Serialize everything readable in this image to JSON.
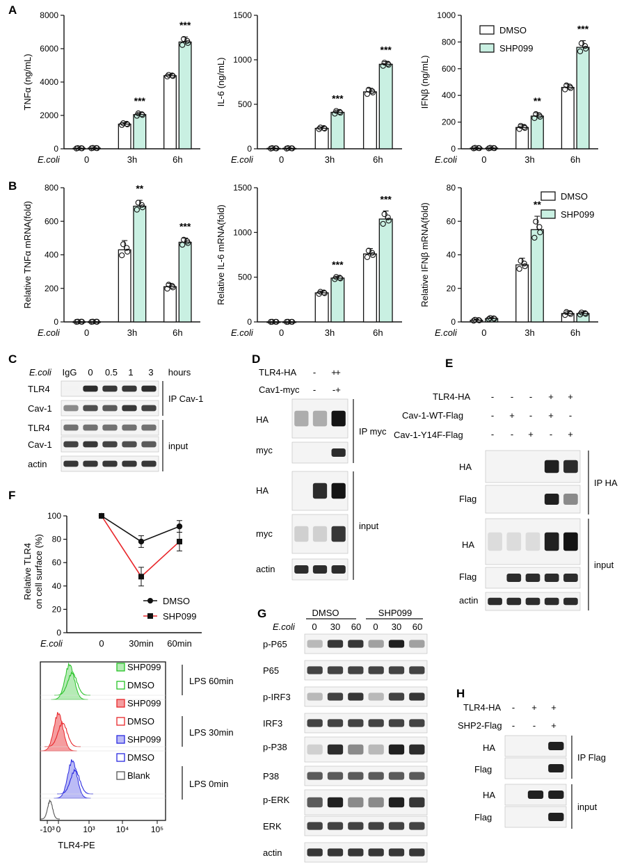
{
  "colors": {
    "dmso_fill": "#ffffff",
    "shp099_fill": "#c9f0e2",
    "bar_stroke": "#111111",
    "dmso_line": "#111111",
    "shp099_line": "#e8262a"
  },
  "legend": {
    "dmso": "DMSO",
    "shp099": "SHP099"
  },
  "panels": {
    "A": "A",
    "B": "B",
    "C": "C",
    "D": "D",
    "E": "E",
    "F": "F",
    "G": "G",
    "H": "H"
  },
  "ecoli_label": "E.coli",
  "chart_data": [
    {
      "id": "A1",
      "type": "bar",
      "categories": [
        "0",
        "3h",
        "6h"
      ],
      "ylabel": "TNFα (ng/mL)",
      "ylim": [
        0,
        8000
      ],
      "yticks": [
        0,
        2000,
        4000,
        6000,
        8000
      ],
      "series": [
        {
          "name": "DMSO",
          "values": [
            30,
            1480,
            4380
          ]
        },
        {
          "name": "SHP099",
          "values": [
            40,
            2050,
            6400
          ]
        }
      ],
      "errors": [
        [
          20,
          90,
          80
        ],
        [
          20,
          120,
          300
        ]
      ],
      "significance": [
        "",
        "***",
        "***"
      ]
    },
    {
      "id": "A2",
      "type": "bar",
      "categories": [
        "0",
        "3h",
        "6h"
      ],
      "ylabel": "IL-6 (ng/mL)",
      "ylim": [
        0,
        1500
      ],
      "yticks": [
        0,
        500,
        1000,
        1500
      ],
      "series": [
        {
          "name": "DMSO",
          "values": [
            5,
            230,
            640
          ]
        },
        {
          "name": "SHP099",
          "values": [
            5,
            410,
            950
          ]
        }
      ],
      "errors": [
        [
          4,
          15,
          40
        ],
        [
          4,
          25,
          30
        ]
      ],
      "significance": [
        "",
        "***",
        "***"
      ]
    },
    {
      "id": "A3",
      "type": "bar",
      "categories": [
        "0",
        "3h",
        "6h"
      ],
      "ylabel": "IFNβ (ng/mL)",
      "ylim": [
        0,
        1000
      ],
      "yticks": [
        0,
        200,
        400,
        600,
        800,
        1000
      ],
      "series": [
        {
          "name": "DMSO",
          "values": [
            5,
            160,
            460
          ]
        },
        {
          "name": "SHP099",
          "values": [
            5,
            245,
            760
          ]
        }
      ],
      "errors": [
        [
          3,
          20,
          25
        ],
        [
          3,
          25,
          50
        ]
      ],
      "significance": [
        "",
        "**",
        "***"
      ]
    },
    {
      "id": "B1",
      "type": "bar",
      "categories": [
        "0",
        "3h",
        "6h"
      ],
      "ylabel": "Relative TNFα mRNA(fold)",
      "ylim": [
        0,
        800
      ],
      "yticks": [
        0,
        200,
        400,
        600,
        800
      ],
      "series": [
        {
          "name": "DMSO",
          "values": [
            1,
            430,
            210
          ]
        },
        {
          "name": "SHP099",
          "values": [
            1,
            690,
            475
          ]
        }
      ],
      "errors": [
        [
          1,
          55,
          20
        ],
        [
          1,
          35,
          25
        ]
      ],
      "significance": [
        "",
        "**",
        "***"
      ]
    },
    {
      "id": "B2",
      "type": "bar",
      "categories": [
        "0",
        "3h",
        "6h"
      ],
      "ylabel": "Relative IL-6 mRNA(fold)",
      "ylim": [
        0,
        1500
      ],
      "yticks": [
        0,
        500,
        1000,
        1500
      ],
      "series": [
        {
          "name": "DMSO",
          "values": [
            1,
            325,
            760
          ]
        },
        {
          "name": "SHP099",
          "values": [
            1,
            490,
            1150
          ]
        }
      ],
      "errors": [
        [
          1,
          20,
          60
        ],
        [
          1,
          20,
          90
        ]
      ],
      "significance": [
        "",
        "***",
        "***"
      ]
    },
    {
      "id": "B3",
      "type": "bar",
      "categories": [
        "0",
        "3h",
        "6h"
      ],
      "ylabel": "Relative IFNβ mRNA(fold)",
      "ylim": [
        0,
        80
      ],
      "yticks": [
        0,
        20,
        40,
        60,
        80
      ],
      "series": [
        {
          "name": "DMSO",
          "values": [
            1,
            34,
            5
          ]
        },
        {
          "name": "SHP099",
          "values": [
            2,
            55,
            5
          ]
        }
      ],
      "errors": [
        [
          0.5,
          4,
          1.5
        ],
        [
          0.5,
          8,
          1
        ]
      ],
      "significance": [
        "",
        "**",
        ""
      ]
    },
    {
      "id": "F",
      "type": "line",
      "x": [
        "0",
        "30min",
        "60min"
      ],
      "ylabel": "Relative TLR4 on cell surface (%)",
      "ylim": [
        0,
        100
      ],
      "yticks": [
        0,
        20,
        40,
        60,
        80,
        100
      ],
      "series": [
        {
          "name": "DMSO",
          "values": [
            100,
            78,
            91
          ]
        },
        {
          "name": "SHP099",
          "values": [
            100,
            48,
            78
          ]
        }
      ],
      "errors": [
        [
          0,
          5,
          5
        ],
        [
          0,
          8,
          8
        ]
      ]
    }
  ],
  "panelC": {
    "header": [
      "IgG",
      "0",
      "0.5",
      "1",
      "3",
      "hours"
    ],
    "rows": [
      "TLR4",
      "Cav-1",
      "TLR4",
      "Cav-1",
      "actin"
    ],
    "groups": [
      "IP Cav-1",
      "input"
    ]
  },
  "panelD": {
    "rowlabels": [
      "TLR4-HA",
      "Cav1-myc"
    ],
    "signs": [
      [
        "-",
        "+",
        "+"
      ],
      [
        "-",
        "-",
        "+"
      ]
    ],
    "blots": [
      "HA",
      "myc",
      "HA",
      "myc",
      "actin"
    ],
    "groups": [
      "IP myc",
      "input"
    ]
  },
  "panelE": {
    "rowlabels": [
      "TLR4-HA",
      "Cav-1-WT-Flag",
      "Cav-1-Y14F-Flag"
    ],
    "signs": [
      [
        "-",
        "-",
        "-",
        "+",
        "+"
      ],
      [
        "-",
        "+",
        "-",
        "+",
        "-"
      ],
      [
        "-",
        "-",
        "+",
        "-",
        "+"
      ]
    ],
    "blots": [
      "HA",
      "Flag",
      "HA",
      "Flag",
      "actin"
    ],
    "groups": [
      "IP HA",
      "input"
    ]
  },
  "panelG": {
    "groups": [
      "DMSO",
      "SHP099"
    ],
    "times": [
      "0",
      "30",
      "60",
      "0",
      "30",
      "60"
    ],
    "blots": [
      "p-P65",
      "P65",
      "p-IRF3",
      "IRF3",
      "p-P38",
      "P38",
      "p-ERK",
      "ERK",
      "actin"
    ]
  },
  "panelH": {
    "rowlabels": [
      "TLR4-HA",
      "SHP2-Flag"
    ],
    "signs": [
      [
        "-",
        "+",
        "+"
      ],
      [
        "-",
        "-",
        "+"
      ]
    ],
    "blots": [
      "HA",
      "Flag",
      "HA",
      "Flag"
    ],
    "groups": [
      "IP Flag",
      "input"
    ]
  },
  "flow": {
    "legend": [
      "SHP099",
      "DMSO",
      "SHP099",
      "DMSO",
      "SHP099",
      "DMSO",
      "Blank"
    ],
    "groups": [
      "LPS 60min",
      "LPS 30min",
      "LPS 0min"
    ],
    "xlabel": "TLR4-PE",
    "xticks": [
      "-10³",
      "0",
      "10³",
      "10⁴",
      "10⁵"
    ]
  }
}
